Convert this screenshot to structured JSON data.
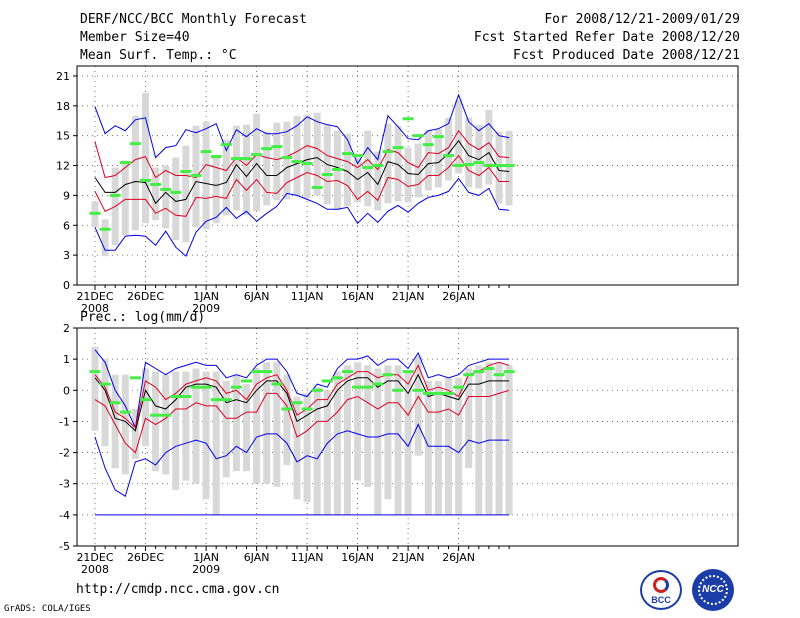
{
  "header": {
    "title": "DERF/NCC/BCC Monthly Forecast",
    "member_size": "Member Size=40",
    "variable": "Mean Surf. Temp.: °C",
    "period": "For 2008/12/21-2009/01/29",
    "start_date": "Fcst Started Refer Date 2008/12/20",
    "produced_date": "Fcst Produced Date 2008/12/21"
  },
  "footer": {
    "url": "http://cmdp.ncc.cma.gov.cn",
    "credit": "GrADS: COLA/IGES",
    "logo_bcc": "BCC",
    "logo_ncc": "NCC"
  },
  "colors": {
    "spread": "#0000ee",
    "band": "#dd0022",
    "mean": "#000000",
    "median": "#44ee44",
    "box": "#d8d8d8"
  },
  "chart_data": [
    {
      "type": "line",
      "title": "Mean Surf. Temp.: °C",
      "xlabel": "",
      "ylabel": "",
      "ylim": [
        0,
        22
      ],
      "yticks": [
        0,
        3,
        6,
        9,
        12,
        15,
        18,
        21
      ],
      "xticks": [
        {
          "day": 0,
          "label": "21DEC",
          "sub": "2008"
        },
        {
          "day": 5,
          "label": "26DEC",
          "sub": ""
        },
        {
          "day": 11,
          "label": "1JAN",
          "sub": "2009"
        },
        {
          "day": 16,
          "label": "6JAN",
          "sub": ""
        },
        {
          "day": 21,
          "label": "11JAN",
          "sub": ""
        },
        {
          "day": 26,
          "label": "16JAN",
          "sub": ""
        },
        {
          "day": 31,
          "label": "21JAN",
          "sub": ""
        },
        {
          "day": 36,
          "label": "26JAN",
          "sub": ""
        }
      ],
      "grid": true,
      "series": [
        {
          "name": "max",
          "values": [
            17.9,
            15.2,
            16.0,
            15.5,
            16.6,
            16.8,
            12.8,
            13.8,
            14.0,
            15.6,
            15.3,
            15.7,
            16.2,
            13.5,
            15.6,
            14.9,
            15.7,
            15.2,
            15.2,
            15.4,
            16.0,
            16.9,
            16.4,
            16.1,
            15.9,
            14.6,
            12.2,
            13.8,
            12.6,
            17.0,
            15.9,
            14.7,
            14.6,
            15.5,
            15.7,
            16.2,
            19.1,
            16.4,
            15.5,
            16.2,
            15.0,
            14.8
          ]
        },
        {
          "name": "p90",
          "values": [
            14.4,
            10.8,
            11.0,
            11.8,
            12.6,
            12.9,
            10.8,
            11.5,
            11.0,
            11.0,
            10.8,
            12.1,
            11.8,
            11.5,
            12.8,
            12.0,
            13.1,
            12.8,
            12.6,
            12.9,
            13.4,
            14.0,
            13.7,
            13.0,
            12.7,
            12.4,
            11.8,
            12.6,
            11.6,
            13.6,
            13.3,
            12.3,
            11.8,
            13.3,
            13.2,
            13.8,
            15.5,
            14.2,
            13.6,
            14.3,
            12.9,
            12.8
          ]
        },
        {
          "name": "mean",
          "values": [
            10.8,
            9.3,
            9.3,
            10.1,
            10.4,
            10.3,
            8.2,
            9.3,
            8.4,
            8.6,
            10.4,
            10.2,
            10.0,
            10.3,
            12.1,
            10.9,
            12.2,
            11.0,
            11.0,
            11.8,
            12.2,
            12.6,
            12.8,
            12.1,
            11.8,
            11.4,
            10.6,
            11.3,
            10.1,
            12.4,
            12.1,
            11.2,
            11.1,
            12.2,
            12.3,
            13.2,
            14.5,
            13.0,
            12.6,
            13.3,
            11.5,
            11.4
          ]
        },
        {
          "name": "p10",
          "values": [
            9.4,
            7.4,
            7.9,
            8.6,
            8.6,
            8.6,
            7.2,
            7.7,
            7.0,
            6.9,
            8.8,
            8.7,
            8.9,
            8.7,
            10.6,
            9.5,
            10.6,
            9.3,
            9.2,
            10.3,
            10.8,
            11.3,
            11.0,
            10.4,
            10.5,
            10.0,
            8.6,
            9.4,
            8.5,
            10.8,
            10.6,
            9.9,
            10.1,
            11.0,
            11.0,
            11.8,
            13.0,
            11.5,
            11.0,
            11.8,
            10.4,
            10.4
          ]
        },
        {
          "name": "min",
          "values": [
            5.8,
            3.5,
            3.5,
            4.9,
            5.0,
            4.9,
            4.0,
            5.4,
            3.8,
            2.9,
            5.3,
            6.4,
            6.8,
            7.8,
            6.7,
            7.4,
            6.4,
            7.2,
            7.9,
            9.2,
            9.0,
            8.6,
            8.2,
            7.6,
            7.6,
            7.8,
            6.2,
            7.2,
            6.3,
            7.4,
            8.0,
            7.3,
            8.2,
            8.8,
            9.0,
            9.4,
            10.7,
            9.3,
            9.0,
            9.7,
            7.6,
            7.5
          ]
        }
      ],
      "boxes": {
        "low": [
          5.8,
          2.9,
          4.0,
          5.0,
          5.5,
          6.2,
          6.5,
          5.7,
          4.5,
          4.3,
          5.8,
          5.6,
          6.2,
          7.0,
          7.5,
          7.0,
          7.4,
          8.0,
          8.5,
          8.6,
          8.9,
          8.7,
          9.0,
          8.1,
          7.5,
          7.9,
          8.3,
          7.9,
          7.5,
          8.2,
          8.4,
          8.3,
          8.8,
          9.5,
          9.8,
          10.5,
          11.2,
          9.8,
          9.7,
          10.1,
          8.2,
          8.0
        ],
        "high": [
          8.4,
          6.6,
          11.8,
          12.5,
          17.0,
          19.3,
          11.8,
          12.0,
          12.8,
          14.0,
          16.0,
          16.4,
          13.1,
          14.6,
          16.0,
          16.1,
          17.2,
          15.4,
          16.3,
          16.4,
          17.0,
          17.1,
          17.3,
          16.2,
          15.5,
          15.2,
          12.8,
          15.5,
          13.4,
          16.2,
          16.0,
          13.8,
          14.2,
          15.6,
          15.7,
          16.8,
          18.6,
          16.8,
          16.1,
          17.6,
          15.4,
          15.5
        ]
      },
      "median": [
        7.2,
        5.6,
        9.0,
        12.3,
        14.2,
        10.5,
        10.1,
        9.6,
        9.3,
        11.4,
        11.0,
        13.4,
        12.9,
        14.1,
        12.7,
        12.7,
        13.1,
        13.7,
        13.9,
        12.8,
        12.4,
        12.2,
        9.8,
        11.1,
        11.6,
        13.2,
        13.0,
        11.8,
        12.0,
        13.4,
        13.8,
        16.7,
        15.0,
        14.1,
        14.9,
        13.0,
        12.0,
        12.1,
        12.3,
        12.0,
        12.0,
        12.0
      ]
    },
    {
      "type": "line",
      "title": "Prec.: log(mm/d)",
      "xlabel": "",
      "ylabel": "",
      "ylim": [
        -5,
        2
      ],
      "yticks": [
        -5,
        -4,
        -3,
        -2,
        -1,
        0,
        1,
        2
      ],
      "xticks": [
        {
          "day": 0,
          "label": "21DEC",
          "sub": "2008"
        },
        {
          "day": 5,
          "label": "26DEC",
          "sub": ""
        },
        {
          "day": 11,
          "label": "1JAN",
          "sub": "2009"
        },
        {
          "day": 16,
          "label": "6JAN",
          "sub": ""
        },
        {
          "day": 21,
          "label": "11JAN",
          "sub": ""
        },
        {
          "day": 26,
          "label": "16JAN",
          "sub": ""
        },
        {
          "day": 31,
          "label": "21JAN",
          "sub": ""
        },
        {
          "day": 36,
          "label": "26JAN",
          "sub": ""
        }
      ],
      "grid": true,
      "series": [
        {
          "name": "max",
          "values": [
            1.3,
            0.9,
            0.0,
            -0.5,
            -1.2,
            0.9,
            0.7,
            0.5,
            0.7,
            0.8,
            0.9,
            0.8,
            0.8,
            0.4,
            0.5,
            0.4,
            0.8,
            1.0,
            1.0,
            0.6,
            -0.1,
            -0.2,
            0.2,
            0.1,
            0.7,
            1.0,
            1.0,
            1.1,
            0.8,
            1.0,
            1.0,
            0.7,
            1.2,
            0.4,
            0.5,
            0.4,
            0.5,
            0.8,
            0.9,
            1.0,
            1.0,
            1.0
          ]
        },
        {
          "name": "p90",
          "values": [
            0.5,
            0.1,
            -0.7,
            -0.9,
            -1.2,
            0.3,
            0.1,
            -0.3,
            -0.1,
            0.2,
            0.3,
            0.4,
            0.3,
            -0.1,
            0.0,
            -0.3,
            0.2,
            0.4,
            0.5,
            0.0,
            -0.8,
            -0.6,
            -0.3,
            -0.3,
            0.2,
            0.4,
            0.6,
            0.6,
            0.4,
            0.5,
            0.5,
            0.2,
            0.8,
            0.0,
            0.1,
            0.0,
            -0.2,
            0.5,
            0.6,
            0.8,
            0.9,
            0.8
          ]
        },
        {
          "name": "mean",
          "values": [
            0.4,
            0.0,
            -0.9,
            -1.0,
            -1.3,
            0.0,
            -0.5,
            -0.6,
            -0.3,
            0.1,
            0.2,
            0.2,
            0.1,
            -0.4,
            -0.3,
            -0.4,
            0.0,
            0.3,
            0.3,
            -0.1,
            -1.0,
            -0.8,
            -0.6,
            -0.5,
            0.0,
            0.3,
            0.4,
            0.4,
            0.1,
            0.3,
            0.3,
            -0.1,
            0.5,
            -0.2,
            -0.1,
            -0.2,
            -0.3,
            0.2,
            0.2,
            0.3,
            0.3,
            0.3
          ]
        },
        {
          "name": "p10",
          "values": [
            -0.3,
            -0.5,
            -1.1,
            -1.7,
            -2.0,
            -0.9,
            -1.1,
            -0.9,
            -0.6,
            -0.6,
            -0.4,
            -0.5,
            -0.5,
            -0.9,
            -0.9,
            -0.7,
            -0.7,
            -0.1,
            -0.1,
            -0.5,
            -1.5,
            -1.3,
            -1.0,
            -1.0,
            -0.7,
            -0.3,
            -0.2,
            -0.4,
            -0.6,
            -0.4,
            -0.4,
            -0.8,
            -0.2,
            -0.7,
            -0.7,
            -0.6,
            -0.8,
            -0.2,
            -0.2,
            -0.2,
            -0.1,
            0.0
          ]
        },
        {
          "name": "min",
          "values": [
            -1.5,
            -2.5,
            -3.2,
            -3.4,
            -2.3,
            -2.2,
            -2.4,
            -2.0,
            -1.8,
            -1.7,
            -1.6,
            -1.7,
            -2.2,
            -2.1,
            -1.8,
            -2.0,
            -1.5,
            -1.4,
            -1.4,
            -1.7,
            -2.3,
            -2.1,
            -2.2,
            -1.7,
            -1.4,
            -1.3,
            -1.4,
            -1.5,
            -1.5,
            -1.4,
            -1.4,
            -1.8,
            -1.1,
            -1.8,
            -1.8,
            -1.8,
            -2.0,
            -1.6,
            -1.7,
            -1.6,
            -1.6,
            -1.6
          ]
        },
        {
          "name": "floor",
          "values": [
            -4.0,
            -4.0,
            -4.0,
            -4.0,
            -4.0,
            -4.0,
            -4.0,
            -4.0,
            -4.0,
            -4.0,
            -4.0,
            -4.0,
            -4.0,
            -4.0,
            -4.0,
            -4.0,
            -4.0,
            -4.0,
            -4.0,
            -4.0,
            -4.0,
            -4.0,
            -4.0,
            -4.0,
            -4.0,
            -4.0,
            -4.0,
            -4.0,
            -4.0,
            -4.0,
            -4.0,
            -4.0,
            -4.0,
            -4.0,
            -4.0,
            -4.0,
            -4.0,
            -4.0,
            -4.0,
            -4.0,
            -4.0,
            -4.0
          ]
        }
      ],
      "boxes": {
        "low": [
          -1.3,
          -1.8,
          -2.5,
          -2.7,
          -2.2,
          -1.8,
          -2.6,
          -2.7,
          -3.2,
          -2.9,
          -3.0,
          -3.5,
          -4.0,
          -2.8,
          -2.6,
          -2.6,
          -3.0,
          -3.0,
          -3.1,
          -2.4,
          -3.5,
          -3.6,
          -4.0,
          -4.0,
          -4.0,
          -4.0,
          -2.9,
          -3.1,
          -4.0,
          -3.5,
          -4.0,
          -4.0,
          -2.1,
          -4.0,
          -4.0,
          -4.0,
          -4.0,
          -2.5,
          -4.0,
          -4.0,
          -4.0,
          -4.0
        ],
        "high": [
          1.4,
          1.0,
          0.5,
          0.5,
          -0.6,
          0.7,
          0.6,
          0.5,
          0.6,
          0.6,
          0.7,
          0.6,
          0.6,
          0.3,
          0.5,
          0.2,
          0.7,
          0.9,
          0.9,
          0.5,
          -0.2,
          -0.1,
          0.1,
          0.0,
          0.6,
          0.8,
          0.9,
          0.8,
          0.7,
          0.8,
          0.8,
          0.6,
          1.1,
          0.3,
          0.3,
          0.4,
          0.4,
          0.7,
          0.8,
          0.9,
          0.9,
          0.8
        ]
      },
      "median": [
        0.6,
        0.2,
        -0.4,
        -0.7,
        0.4,
        -0.3,
        -0.8,
        -0.8,
        -0.2,
        -0.2,
        0.1,
        0.1,
        -0.3,
        -0.3,
        0.1,
        0.3,
        0.6,
        0.6,
        0.2,
        -0.6,
        -0.4,
        -0.6,
        0.0,
        0.3,
        0.4,
        0.6,
        0.1,
        0.1,
        0.2,
        0.5,
        0.0,
        0.6,
        0.0,
        -0.1,
        -0.1,
        -0.1,
        0.1,
        0.5,
        0.6,
        0.7,
        0.5,
        0.6
      ]
    }
  ]
}
